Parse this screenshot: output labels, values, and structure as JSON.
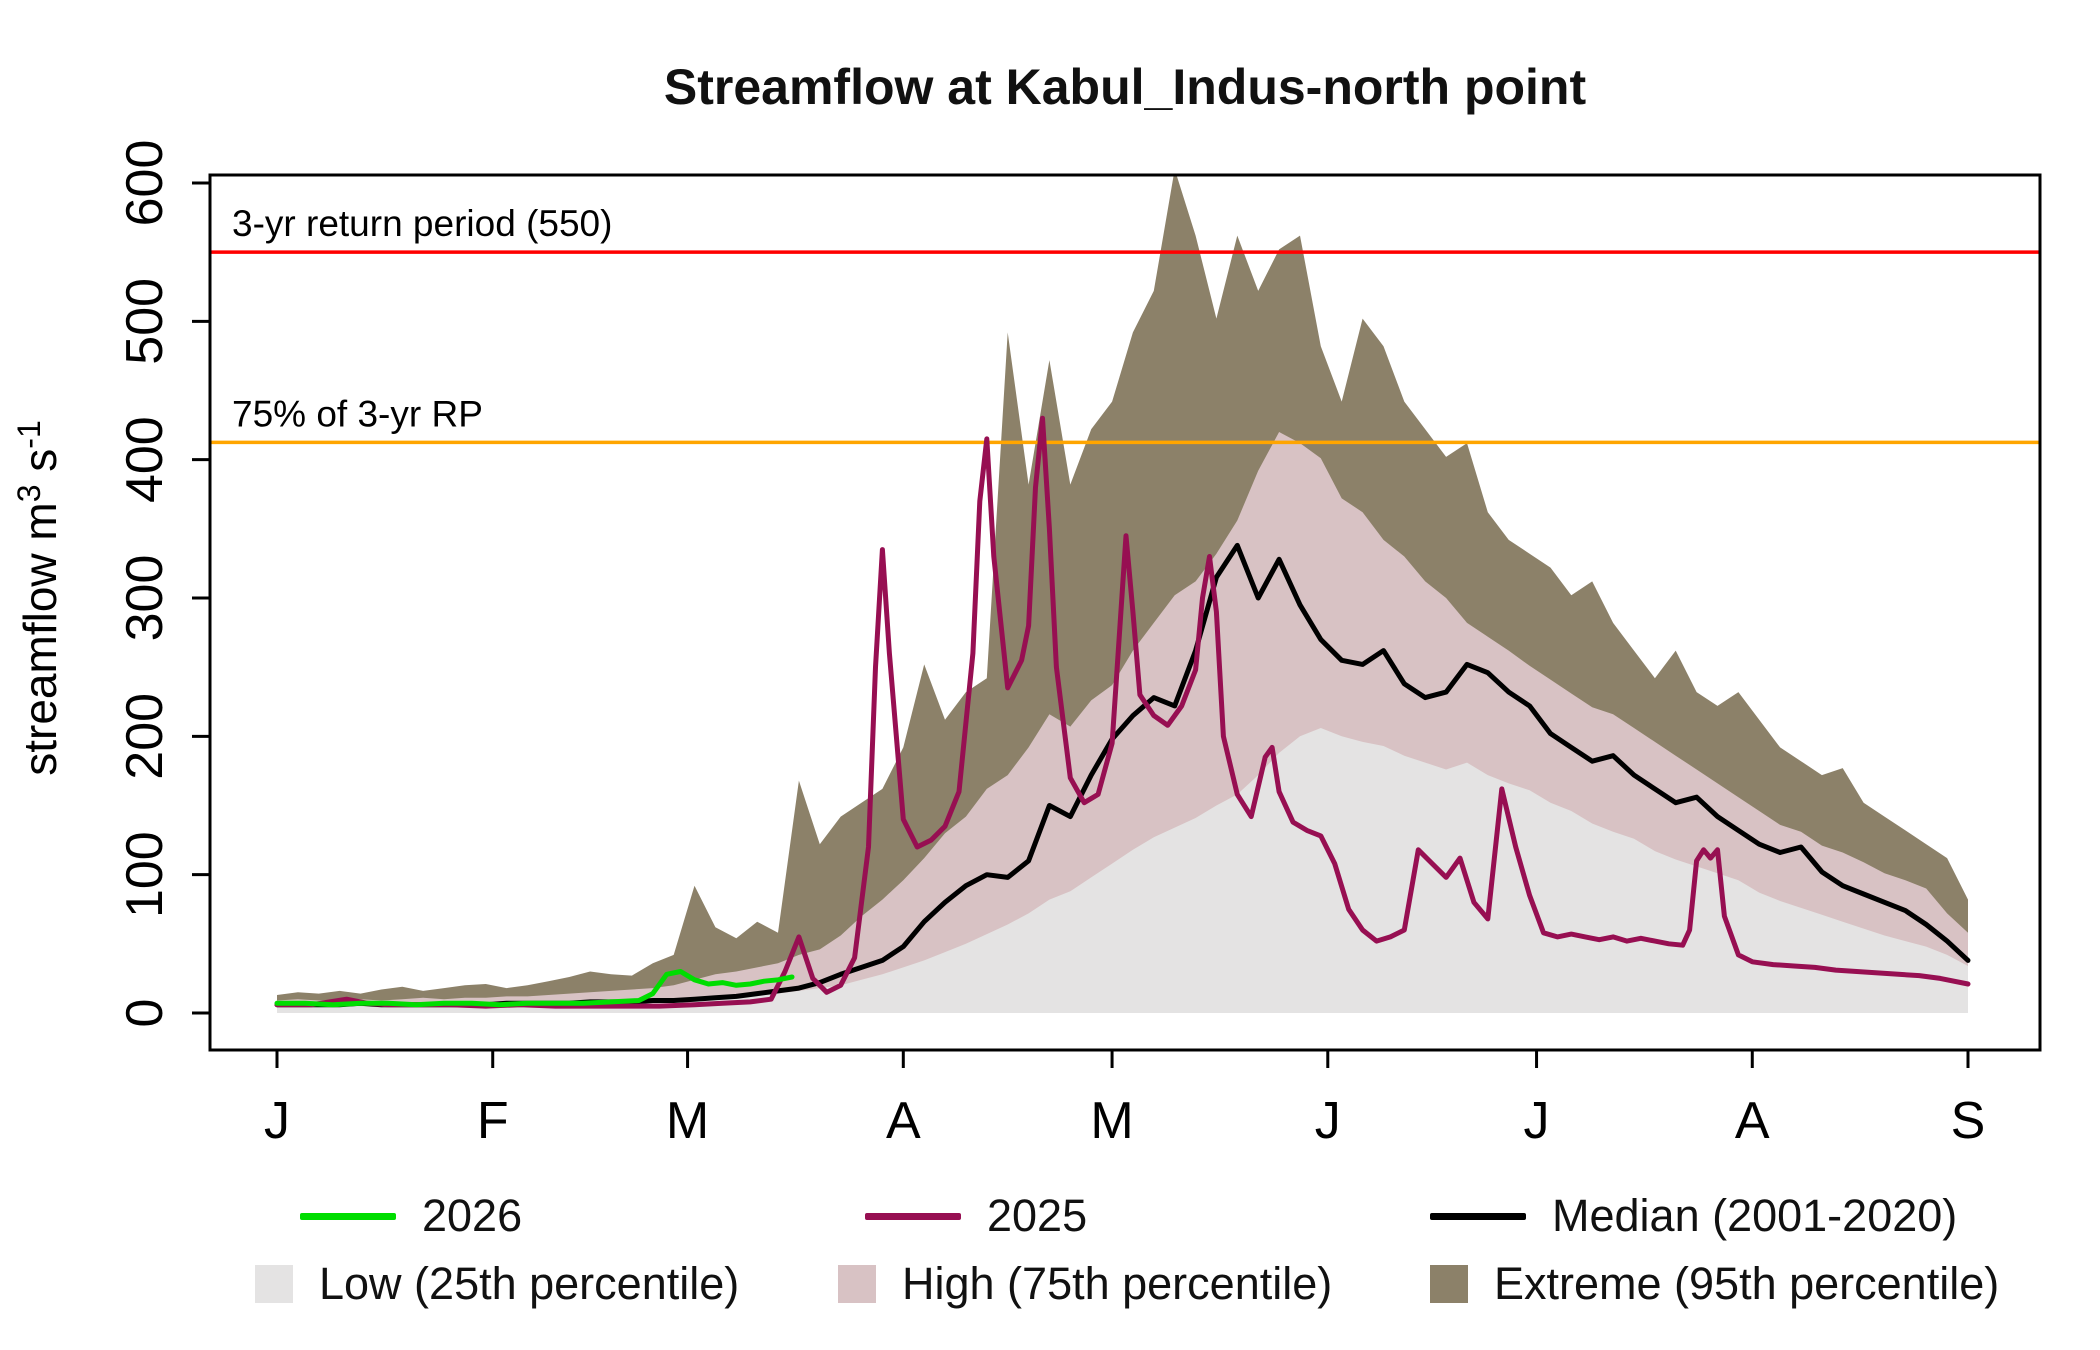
{
  "title": "Streamflow at Kabul_Indus-north point",
  "ylabel": {
    "base": "streamflow m",
    "sup1": "3",
    "mid": " s",
    "sup2": "-1"
  },
  "chart_data": {
    "type": "area",
    "title": "Streamflow at Kabul_Indus-north point",
    "xlabel": "",
    "ylabel": "streamflow m3 s-1",
    "ylim": [
      0,
      600
    ],
    "y_ticks": [
      0,
      100,
      200,
      300,
      400,
      500,
      600
    ],
    "x_tick_labels": [
      "J",
      "F",
      "M",
      "A",
      "M",
      "J",
      "J",
      "A",
      "S"
    ],
    "x_tick_days": [
      0,
      31,
      59,
      90,
      120,
      151,
      181,
      212,
      243
    ],
    "x_domain_days": [
      0,
      243
    ],
    "grid": false,
    "legend_position": "bottom",
    "reference_lines": [
      {
        "id": "return-period-3yr",
        "label": "3-yr return period (550)",
        "value": 550,
        "color": "#ff0000"
      },
      {
        "id": "rp-75pct",
        "label": "75% of 3-yr RP",
        "value": 412.5,
        "color": "#ffa500"
      }
    ],
    "band_x_days": [
      0,
      3,
      6,
      9,
      12,
      15,
      18,
      21,
      24,
      27,
      30,
      33,
      36,
      39,
      42,
      45,
      48,
      51,
      54,
      57,
      60,
      63,
      66,
      69,
      72,
      75,
      78,
      81,
      84,
      87,
      90,
      93,
      96,
      99,
      102,
      105,
      108,
      111,
      114,
      117,
      120,
      123,
      126,
      129,
      132,
      135,
      138,
      141,
      144,
      147,
      150,
      153,
      156,
      159,
      162,
      165,
      168,
      171,
      174,
      177,
      180,
      183,
      186,
      189,
      192,
      195,
      198,
      201,
      204,
      207,
      210,
      213,
      216,
      219,
      222,
      225,
      228,
      231,
      234,
      237,
      240,
      243
    ],
    "bands": [
      {
        "id": "low",
        "name": "Low (25th percentile)",
        "color": "#e4e3e3",
        "values": [
          5,
          5,
          4,
          5,
          5,
          4,
          5,
          5,
          5,
          5,
          5,
          6,
          5,
          6,
          6,
          7,
          7,
          8,
          8,
          9,
          10,
          11,
          12,
          13,
          14,
          16,
          18,
          20,
          24,
          28,
          33,
          38,
          44,
          50,
          57,
          64,
          72,
          82,
          88,
          98,
          108,
          118,
          127,
          134,
          141,
          150,
          158,
          172,
          188,
          200,
          206,
          200,
          196,
          193,
          186,
          181,
          176,
          181,
          172,
          166,
          161,
          152,
          146,
          137,
          131,
          126,
          117,
          111,
          106,
          101,
          96,
          87,
          81,
          76,
          71,
          66,
          61,
          56,
          52,
          48,
          42,
          34
        ]
      },
      {
        "id": "high",
        "name": "High (75th percentile)",
        "color": "#d8c2c4",
        "values": [
          9,
          10,
          9,
          10,
          10,
          9,
          10,
          11,
          10,
          11,
          11,
          12,
          12,
          13,
          14,
          15,
          16,
          17,
          18,
          20,
          24,
          28,
          30,
          33,
          36,
          42,
          46,
          56,
          70,
          82,
          96,
          112,
          130,
          142,
          162,
          172,
          192,
          216,
          207,
          226,
          237,
          262,
          282,
          302,
          312,
          332,
          356,
          392,
          420,
          412,
          401,
          372,
          362,
          342,
          330,
          312,
          300,
          282,
          272,
          262,
          251,
          241,
          231,
          221,
          216,
          206,
          196,
          186,
          176,
          166,
          156,
          146,
          136,
          131,
          121,
          116,
          109,
          101,
          96,
          90,
          72,
          58
        ]
      },
      {
        "id": "extreme",
        "name": "Extreme (95th percentile)",
        "color": "#8c8169",
        "values": [
          13,
          15,
          14,
          16,
          14,
          17,
          19,
          16,
          18,
          20,
          21,
          18,
          20,
          23,
          26,
          30,
          28,
          27,
          36,
          42,
          92,
          62,
          54,
          66,
          58,
          168,
          122,
          142,
          152,
          162,
          192,
          252,
          212,
          232,
          242,
          492,
          382,
          472,
          382,
          422,
          442,
          492,
          522,
          610,
          562,
          502,
          562,
          522,
          552,
          562,
          482,
          442,
          502,
          482,
          442,
          422,
          402,
          412,
          362,
          342,
          332,
          322,
          302,
          312,
          282,
          262,
          242,
          262,
          232,
          222,
          232,
          212,
          192,
          182,
          172,
          177,
          152,
          142,
          132,
          122,
          112,
          82
        ]
      }
    ],
    "series": [
      {
        "id": "median",
        "name": "Median (2001-2020)",
        "color": "#000000",
        "width": 5,
        "x": [
          0,
          3,
          6,
          9,
          12,
          15,
          18,
          21,
          24,
          27,
          30,
          33,
          36,
          39,
          42,
          45,
          48,
          51,
          54,
          57,
          60,
          63,
          66,
          69,
          72,
          75,
          78,
          81,
          84,
          87,
          90,
          93,
          96,
          99,
          102,
          105,
          108,
          111,
          114,
          117,
          120,
          123,
          126,
          129,
          132,
          135,
          138,
          141,
          144,
          147,
          150,
          153,
          156,
          159,
          162,
          165,
          168,
          171,
          174,
          177,
          180,
          183,
          186,
          189,
          192,
          195,
          198,
          201,
          204,
          207,
          210,
          213,
          216,
          219,
          222,
          225,
          228,
          231,
          234,
          237,
          240,
          243
        ],
        "values": [
          6,
          6,
          6,
          6,
          7,
          6,
          6,
          6,
          6,
          6,
          6,
          7,
          7,
          7,
          7,
          8,
          8,
          8,
          9,
          9,
          10,
          11,
          12,
          14,
          16,
          18,
          22,
          28,
          33,
          38,
          48,
          66,
          80,
          92,
          100,
          98,
          110,
          150,
          142,
          172,
          198,
          215,
          228,
          222,
          262,
          315,
          338,
          300,
          328,
          295,
          270,
          255,
          252,
          262,
          238,
          228,
          232,
          252,
          246,
          232,
          222,
          202,
          192,
          182,
          186,
          172,
          162,
          152,
          156,
          142,
          132,
          122,
          116,
          120,
          102,
          92,
          86,
          80,
          74,
          64,
          52,
          38
        ]
      },
      {
        "id": "y2025",
        "name": "2025",
        "color": "#970f52",
        "width": 5,
        "x": [
          0,
          5,
          10,
          13,
          16,
          20,
          25,
          30,
          35,
          40,
          45,
          50,
          55,
          60,
          64,
          68,
          71,
          73,
          75,
          77,
          79,
          81,
          83,
          85,
          86,
          87,
          88,
          90,
          92,
          94,
          96,
          98,
          100,
          101,
          102,
          103,
          105,
          107,
          108,
          109,
          110,
          111,
          112,
          114,
          116,
          118,
          120,
          122,
          123,
          124,
          126,
          128,
          130,
          132,
          133,
          134,
          135,
          136,
          138,
          140,
          142,
          143,
          144,
          146,
          148,
          150,
          152,
          154,
          156,
          158,
          160,
          162,
          164,
          166,
          168,
          170,
          172,
          174,
          176,
          178,
          180,
          182,
          184,
          186,
          188,
          190,
          192,
          194,
          196,
          198,
          200,
          202,
          203,
          204,
          205,
          206,
          207,
          208,
          210,
          212,
          215,
          218,
          221,
          224,
          227,
          230,
          233,
          236,
          239,
          243
        ],
        "values": [
          6,
          6,
          10,
          7,
          6,
          6,
          6,
          5,
          6,
          5,
          5,
          5,
          5,
          6,
          7,
          8,
          10,
          30,
          55,
          25,
          15,
          20,
          40,
          120,
          250,
          335,
          260,
          140,
          120,
          125,
          135,
          160,
          260,
          370,
          415,
          330,
          235,
          255,
          280,
          380,
          430,
          350,
          250,
          170,
          152,
          158,
          195,
          345,
          290,
          230,
          215,
          208,
          222,
          248,
          300,
          330,
          290,
          200,
          158,
          142,
          185,
          192,
          160,
          138,
          132,
          128,
          108,
          75,
          60,
          52,
          55,
          60,
          118,
          108,
          98,
          112,
          80,
          68,
          162,
          120,
          85,
          58,
          55,
          57,
          55,
          53,
          55,
          52,
          54,
          52,
          50,
          49,
          60,
          110,
          118,
          112,
          118,
          70,
          42,
          37,
          35,
          34,
          33,
          31,
          30,
          29,
          28,
          27,
          25,
          21
        ]
      },
      {
        "id": "y2026",
        "name": "2026",
        "color": "#00dd00",
        "width": 5,
        "x": [
          0,
          4,
          8,
          12,
          16,
          20,
          24,
          28,
          32,
          36,
          40,
          44,
          48,
          52,
          54,
          56,
          58,
          60,
          62,
          64,
          66,
          68,
          70,
          72,
          74
        ],
        "values": [
          7,
          7,
          6,
          7,
          7,
          6,
          7,
          7,
          6,
          7,
          7,
          7,
          8,
          9,
          14,
          28,
          30,
          24,
          21,
          22,
          20,
          21,
          23,
          24,
          26
        ]
      }
    ]
  }
}
